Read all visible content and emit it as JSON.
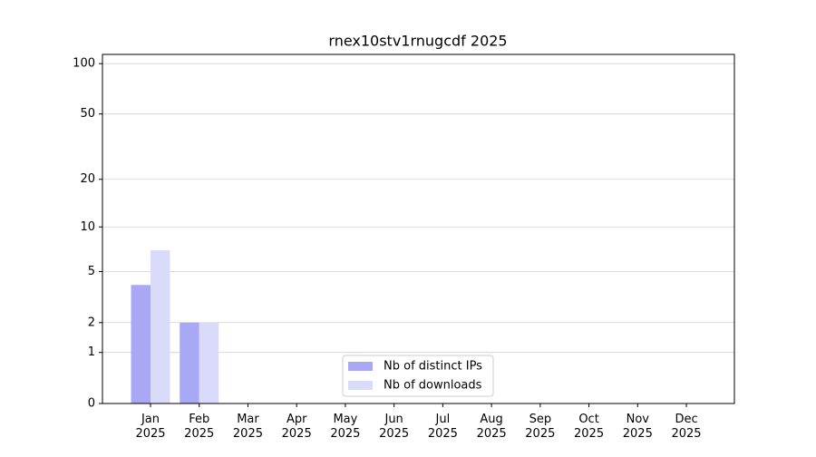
{
  "chart_data": {
    "type": "bar",
    "title": "rnex10stv1rnugcdf 2025",
    "categories": [
      "Jan 2025",
      "Feb 2025",
      "Mar 2025",
      "Apr 2025",
      "May 2025",
      "Jun 2025",
      "Jul 2025",
      "Aug 2025",
      "Sep 2025",
      "Oct 2025",
      "Nov 2025",
      "Dec 2025"
    ],
    "series": [
      {
        "name": "Nb of distinct IPs",
        "color": "#a8a8f5",
        "values": [
          4,
          2,
          0,
          0,
          0,
          0,
          0,
          0,
          0,
          0,
          0,
          0
        ]
      },
      {
        "name": "Nb of downloads",
        "color": "#dadafb",
        "values": [
          7,
          2,
          0,
          0,
          0,
          0,
          0,
          0,
          0,
          0,
          0,
          0
        ]
      }
    ],
    "yscale": "log1p",
    "ylim": [
      0,
      113.5
    ],
    "yticks": [
      0,
      1,
      2,
      5,
      10,
      20,
      50,
      100
    ],
    "grid": true,
    "legend": "lower center"
  }
}
